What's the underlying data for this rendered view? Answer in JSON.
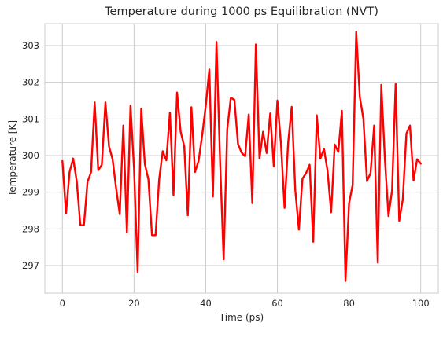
{
  "chart_data": {
    "type": "line",
    "title": "Temperature during 1000 ps Equilibration (NVT)",
    "xlabel": "Time (ps)",
    "ylabel": "Temperature [K]",
    "xlim": [
      -4.9,
      104.9
    ],
    "ylim": [
      296.25,
      303.6
    ],
    "xticks": [
      0,
      20,
      40,
      60,
      80,
      100
    ],
    "xtick_labels": [
      "0",
      "20",
      "40",
      "60",
      "80",
      "100"
    ],
    "yticks": [
      297,
      298,
      299,
      300,
      301,
      302,
      303
    ],
    "ytick_labels": [
      "297",
      "298",
      "299",
      "300",
      "301",
      "302",
      "303"
    ],
    "grid": true,
    "series": [
      {
        "color": "#ff0000",
        "x": [
          0,
          1,
          2,
          3,
          4,
          5,
          6,
          7,
          8,
          9,
          10,
          11,
          12,
          13,
          14,
          15,
          16,
          17,
          18,
          19,
          20,
          21,
          22,
          23,
          24,
          25,
          26,
          27,
          28,
          29,
          30,
          31,
          32,
          33,
          34,
          35,
          36,
          37,
          38,
          39,
          40,
          41,
          42,
          43,
          44,
          45,
          46,
          47,
          48,
          49,
          50,
          51,
          52,
          53,
          54,
          55,
          56,
          57,
          58,
          59,
          60,
          61,
          62,
          63,
          64,
          65,
          66,
          67,
          68,
          69,
          70,
          71,
          72,
          73,
          74,
          75,
          76,
          77,
          78,
          79,
          80,
          81,
          82,
          83,
          84,
          85,
          86,
          87,
          88,
          89,
          90,
          91,
          92,
          93,
          94,
          95,
          96,
          97,
          98,
          99,
          100
        ],
        "y": [
          299.85,
          298.42,
          299.55,
          299.92,
          299.3,
          298.1,
          298.1,
          299.28,
          299.55,
          301.45,
          299.6,
          299.75,
          301.45,
          300.25,
          299.9,
          299.1,
          298.4,
          300.82,
          297.9,
          301.37,
          299.62,
          296.83,
          301.28,
          299.77,
          299.35,
          297.83,
          297.83,
          299.35,
          300.12,
          299.87,
          301.17,
          298.92,
          301.72,
          300.65,
          300.25,
          298.37,
          301.32,
          299.55,
          299.85,
          300.55,
          301.35,
          302.35,
          298.88,
          303.1,
          299.85,
          297.17,
          300.72,
          301.58,
          301.52,
          300.32,
          300.08,
          299.98,
          301.12,
          298.7,
          303.03,
          299.92,
          300.65,
          300.07,
          301.15,
          299.7,
          301.5,
          300.32,
          298.57,
          300.35,
          301.33,
          299.05,
          297.98,
          299.37,
          299.52,
          299.75,
          297.65,
          301.1,
          299.92,
          300.18,
          299.58,
          298.45,
          300.3,
          300.1,
          301.22,
          296.58,
          298.7,
          299.2,
          303.37,
          301.6,
          301.0,
          299.3,
          299.52,
          300.82,
          297.08,
          301.93,
          299.9,
          298.35,
          299.05,
          301.95,
          298.22,
          298.8,
          300.6,
          300.82,
          299.32,
          299.9,
          299.78
        ]
      }
    ]
  }
}
